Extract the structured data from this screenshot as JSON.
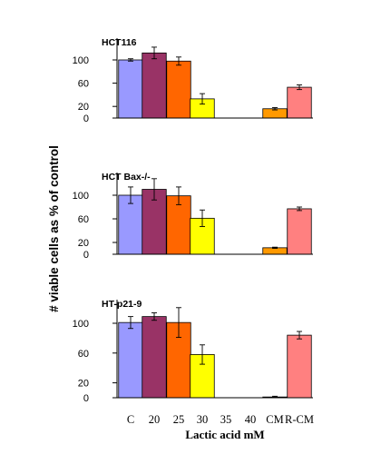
{
  "figure": {
    "ylabel": "# viable cells as % of control",
    "xlabel": "Lactic acid mM"
  },
  "chart_data": [
    {
      "type": "bar",
      "title": "HCT116",
      "categories": [
        "C",
        "20",
        "25",
        "30",
        "35",
        "40",
        "CM",
        "R-CM"
      ],
      "values": [
        100,
        112,
        98,
        33,
        0,
        0,
        16,
        53
      ],
      "errors": [
        2,
        10,
        7,
        9,
        0,
        0,
        2,
        4
      ],
      "colors": [
        "#9999ff",
        "#993366",
        "#ff6600",
        "#ffff00",
        "#ffffff",
        "#ffffff",
        "#ff9900",
        "#ff8080"
      ],
      "yticks": [
        0,
        20,
        60,
        100
      ],
      "ylim": [
        0,
        130
      ],
      "xlabel": "Lactic acid mM",
      "ylabel": "# viable cells as % of control"
    },
    {
      "type": "bar",
      "title": "HCT Bax-/-",
      "categories": [
        "C",
        "20",
        "25",
        "30",
        "35",
        "40",
        "CM",
        "R-CM"
      ],
      "values": [
        100,
        110,
        99,
        61,
        0,
        0,
        11,
        77
      ],
      "errors": [
        14,
        18,
        15,
        14,
        0,
        0,
        1,
        3
      ],
      "colors": [
        "#9999ff",
        "#993366",
        "#ff6600",
        "#ffff00",
        "#ffffff",
        "#ffffff",
        "#ff9900",
        "#ff8080"
      ],
      "yticks": [
        0,
        20,
        60,
        100
      ],
      "ylim": [
        0,
        130
      ],
      "xlabel": "Lactic acid mM",
      "ylabel": "# viable cells as % of control"
    },
    {
      "type": "bar",
      "title": "HT-p21-9",
      "categories": [
        "C",
        "20",
        "25",
        "30",
        "35",
        "40",
        "CM",
        "R-CM"
      ],
      "values": [
        101,
        109,
        101,
        58,
        0,
        0,
        1,
        84
      ],
      "errors": [
        8,
        5,
        20,
        13,
        0,
        0,
        1,
        5
      ],
      "colors": [
        "#9999ff",
        "#993366",
        "#ff6600",
        "#ffff00",
        "#ffffff",
        "#ffffff",
        "#ff9900",
        "#ff8080"
      ],
      "yticks": [
        0,
        20,
        60,
        100
      ],
      "ylim": [
        0,
        130
      ],
      "xlabel": "Lactic acid mM",
      "ylabel": "# viable cells as % of control"
    }
  ]
}
